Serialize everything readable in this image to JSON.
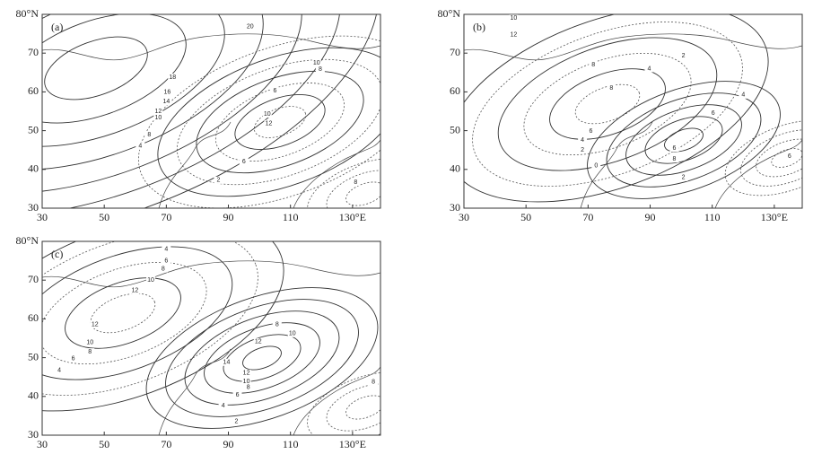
{
  "panels": [
    {
      "label": "(a)",
      "xlim": [
        30,
        139
      ],
      "ylim": [
        30,
        80
      ],
      "xticks": [
        30,
        50,
        70,
        90,
        110,
        {
          "value": 130,
          "label": "130°E"
        }
      ],
      "yticks": [
        30,
        40,
        50,
        60,
        70,
        {
          "value": 80,
          "label": "80°N"
        }
      ],
      "contour_labels": [
        {
          "text": "20",
          "lon": 97,
          "lat": 76.8
        },
        {
          "text": "18",
          "lon": 72,
          "lat": 63.8
        },
        {
          "text": "16",
          "lon": 70.3,
          "lat": 59.9
        },
        {
          "text": "14",
          "lon": 70,
          "lat": 57.5
        },
        {
          "text": "12",
          "lon": 67.4,
          "lat": 55
        },
        {
          "text": "10",
          "lon": 67.4,
          "lat": 53.4
        },
        {
          "text": "8",
          "lon": 64.5,
          "lat": 49
        },
        {
          "text": "4",
          "lon": 61.6,
          "lat": 46
        },
        {
          "text": "12",
          "lon": 103,
          "lat": 51.8
        },
        {
          "text": "10",
          "lon": 102.5,
          "lat": 54.3
        },
        {
          "text": "6",
          "lon": 95,
          "lat": 42
        },
        {
          "text": "2",
          "lon": 86.8,
          "lat": 37.2
        },
        {
          "text": "10",
          "lon": 118.4,
          "lat": 67.5
        },
        {
          "text": "8",
          "lon": 119.6,
          "lat": 65.9
        },
        {
          "text": "6",
          "lon": 105,
          "lat": 60.3
        },
        {
          "text": "8",
          "lon": 131,
          "lat": 36.7
        }
      ]
    },
    {
      "label": "(b)",
      "xlim": [
        30,
        139
      ],
      "ylim": [
        30,
        80
      ],
      "xticks": [
        30,
        50,
        70,
        90,
        110,
        {
          "value": 130,
          "label": "130°E"
        }
      ],
      "yticks": [
        30,
        40,
        50,
        60,
        70,
        {
          "value": 80,
          "label": "80°N"
        }
      ],
      "contour_labels": [
        {
          "text": "10",
          "lon": 46,
          "lat": 79
        },
        {
          "text": "12",
          "lon": 46,
          "lat": 74.7
        },
        {
          "text": "8",
          "lon": 71.7,
          "lat": 67
        },
        {
          "text": "4",
          "lon": 89.7,
          "lat": 66
        },
        {
          "text": "2",
          "lon": 100.7,
          "lat": 69.3
        },
        {
          "text": "8",
          "lon": 77.5,
          "lat": 61
        },
        {
          "text": "6",
          "lon": 70.9,
          "lat": 49.9
        },
        {
          "text": "4",
          "lon": 68.2,
          "lat": 47.6
        },
        {
          "text": "2",
          "lon": 68.2,
          "lat": 45
        },
        {
          "text": "0",
          "lon": 72.6,
          "lat": 41
        },
        {
          "text": "6",
          "lon": 97.8,
          "lat": 45.5
        },
        {
          "text": "8",
          "lon": 97.8,
          "lat": 42.7
        },
        {
          "text": "2",
          "lon": 100.7,
          "lat": 37.9
        },
        {
          "text": "4",
          "lon": 120,
          "lat": 59.2
        },
        {
          "text": "6",
          "lon": 110.3,
          "lat": 54.5
        },
        {
          "text": "6",
          "lon": 134.9,
          "lat": 43.4
        }
      ]
    },
    {
      "label": "(c)",
      "xlim": [
        30,
        139
      ],
      "ylim": [
        30,
        80
      ],
      "xticks": [
        30,
        50,
        70,
        90,
        110,
        {
          "value": 130,
          "label": "130°E"
        }
      ],
      "yticks": [
        30,
        40,
        50,
        60,
        70,
        {
          "value": 80,
          "label": "80°N"
        }
      ],
      "contour_labels": [
        {
          "text": "4",
          "lon": 70,
          "lat": 78
        },
        {
          "text": "6",
          "lon": 70,
          "lat": 75
        },
        {
          "text": "8",
          "lon": 69,
          "lat": 72.9
        },
        {
          "text": "10",
          "lon": 65,
          "lat": 70
        },
        {
          "text": "12",
          "lon": 59.9,
          "lat": 67.3
        },
        {
          "text": "12",
          "lon": 47,
          "lat": 58.5
        },
        {
          "text": "10",
          "lon": 45.4,
          "lat": 53.9
        },
        {
          "text": "8",
          "lon": 45.4,
          "lat": 51.5
        },
        {
          "text": "6",
          "lon": 40,
          "lat": 49.7
        },
        {
          "text": "4",
          "lon": 35.5,
          "lat": 46.7
        },
        {
          "text": "8",
          "lon": 105.7,
          "lat": 58.5
        },
        {
          "text": "10",
          "lon": 110.6,
          "lat": 56.2
        },
        {
          "text": "12",
          "lon": 99.6,
          "lat": 54.1
        },
        {
          "text": "14",
          "lon": 89.4,
          "lat": 48.8
        },
        {
          "text": "12",
          "lon": 95.8,
          "lat": 46
        },
        {
          "text": "10",
          "lon": 95.8,
          "lat": 43.9
        },
        {
          "text": "8",
          "lon": 96.4,
          "lat": 42.3
        },
        {
          "text": "6",
          "lon": 92.9,
          "lat": 40.4
        },
        {
          "text": "4",
          "lon": 88.3,
          "lat": 37.6
        },
        {
          "text": "2",
          "lon": 92.6,
          "lat": 33.5
        },
        {
          "text": "8",
          "lon": 136.7,
          "lat": 43.7
        }
      ]
    }
  ]
}
